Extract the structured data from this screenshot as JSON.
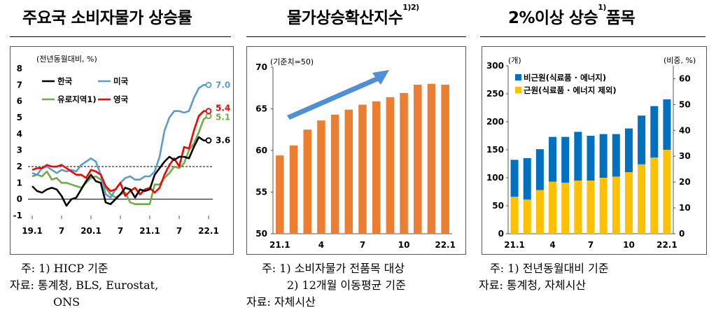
{
  "panels": [
    {
      "title": "주요국 소비자물가 상승률",
      "title_sup": "",
      "notes": [
        "주: 1) HICP 기준",
        "자료: 통계청, BLS, Eurostat,",
        "ONS"
      ]
    },
    {
      "title": "물가상승확산지수",
      "title_sup": "1)2)",
      "notes": [
        "주: 1) 소비자물가 전품목 대상",
        "2) 12개월 이동평균 기준",
        "자료: 자체시산"
      ]
    },
    {
      "title": "2%이상 상승",
      "title_sup": "1)",
      "title_tail": "품목",
      "notes": [
        "주: 1) 전년동월대비 기준",
        "자료: 통계청, 자체시산"
      ]
    }
  ],
  "chart_data": [
    {
      "type": "line",
      "unit_label": "(전년동월대비, %)",
      "x_ticks": [
        "19.1",
        "7",
        "20.1",
        "7",
        "21.1",
        "7",
        "22.1"
      ],
      "ylim": [
        -1,
        8
      ],
      "y_ticks": [
        "8",
        "7",
        "6",
        "5",
        "4",
        "3",
        "2",
        "1",
        "0",
        "-1"
      ],
      "reference_line": 2,
      "end_labels": {
        "us": "7.0",
        "uk": "5.4",
        "eu": "5.1",
        "kr": "3.6"
      },
      "series": [
        {
          "name": "한국",
          "color": "#000000",
          "values": [
            0.8,
            0.5,
            0.4,
            0.6,
            0.7,
            0.6,
            0.2,
            -0.4,
            0.0,
            0.1,
            0.6,
            1.1,
            1.5,
            1.1,
            1.0,
            -0.2,
            -0.3,
            0.0,
            0.3,
            0.7,
            0.6,
            0.1,
            0.6,
            0.5,
            0.6,
            1.5,
            1.9,
            2.3,
            2.6,
            2.4,
            2.6,
            2.6,
            2.5,
            3.2,
            3.8,
            3.6,
            3.6
          ]
        },
        {
          "name": "미국",
          "color": "#5b9bd5",
          "values": [
            1.6,
            1.5,
            1.9,
            2.0,
            1.8,
            1.6,
            1.8,
            1.7,
            1.8,
            1.7,
            2.1,
            2.3,
            2.5,
            2.3,
            1.5,
            0.3,
            0.1,
            0.6,
            1.0,
            1.3,
            1.4,
            1.2,
            1.2,
            1.4,
            1.4,
            1.7,
            2.6,
            4.2,
            5.0,
            5.4,
            5.4,
            5.3,
            5.4,
            6.2,
            6.8,
            7.0,
            7.0
          ]
        },
        {
          "name": "유로지역1)",
          "color": "#70ad47",
          "values": [
            1.4,
            1.5,
            1.4,
            1.7,
            1.2,
            1.3,
            1.0,
            1.0,
            0.9,
            0.8,
            0.7,
            1.0,
            1.3,
            1.4,
            1.2,
            0.7,
            0.3,
            0.1,
            0.3,
            0.4,
            -0.2,
            -0.3,
            -0.3,
            -0.3,
            -0.3,
            0.9,
            0.9,
            1.3,
            1.6,
            2.0,
            1.9,
            2.2,
            3.0,
            3.4,
            4.1,
            4.9,
            5.1
          ]
        },
        {
          "name": "영국",
          "color": "#ff0000",
          "values": [
            1.8,
            1.9,
            1.9,
            2.1,
            2.0,
            2.0,
            2.1,
            1.9,
            1.7,
            1.5,
            1.5,
            1.3,
            1.8,
            1.7,
            1.5,
            0.8,
            0.5,
            0.6,
            1.0,
            0.2,
            0.5,
            0.7,
            0.3,
            0.6,
            0.7,
            0.4,
            0.7,
            1.5,
            2.1,
            2.5,
            2.0,
            3.2,
            3.1,
            4.2,
            5.1,
            5.4,
            5.4
          ]
        }
      ]
    },
    {
      "type": "bar",
      "unit_label": "(기준치=50)",
      "categories": [
        "21.1",
        "21.2",
        "21.3",
        "21.4",
        "21.5",
        "21.6",
        "21.7",
        "21.8",
        "21.9",
        "21.10",
        "21.11",
        "21.12",
        "22.1"
      ],
      "x_ticks": [
        "21.1",
        "4",
        "7",
        "10",
        "22.1"
      ],
      "values": [
        59.4,
        60.6,
        62.5,
        63.6,
        64.3,
        64.9,
        65.5,
        65.9,
        66.4,
        66.9,
        67.9,
        68.0,
        67.9
      ],
      "ylim": [
        50,
        70
      ],
      "y_ticks": [
        "70",
        "65",
        "60",
        "55",
        "50"
      ],
      "color": "#ed7d31"
    },
    {
      "type": "bar",
      "stacked": true,
      "unit_label_left": "(개)",
      "unit_label_right": "(비중, %)",
      "categories": [
        "21.1",
        "21.2",
        "21.3",
        "21.4",
        "21.5",
        "21.6",
        "21.7",
        "21.8",
        "21.9",
        "21.10",
        "21.11",
        "21.12",
        "22.1"
      ],
      "x_ticks": [
        "21.1",
        "4",
        "7",
        "10",
        "22.1"
      ],
      "ylim": [
        0,
        300
      ],
      "y_ticks_left": [
        "300",
        "250",
        "200",
        "150",
        "100",
        "50",
        "0"
      ],
      "ylim_right": [
        0,
        65
      ],
      "y_ticks_right": [
        "60",
        "50",
        "40",
        "30",
        "20",
        "10",
        "0"
      ],
      "series": [
        {
          "name": "비근원(식료품 · 에너지)",
          "color": "#0070c0",
          "values": [
            66,
            74,
            73,
            80,
            82,
            87,
            80,
            78,
            76,
            78,
            87,
            92,
            90
          ]
        },
        {
          "name": "근원(식료품 · 에너지 제외)",
          "color": "#ffc000",
          "values": [
            66,
            61,
            78,
            93,
            91,
            95,
            95,
            100,
            102,
            110,
            124,
            136,
            150
          ]
        }
      ]
    }
  ]
}
